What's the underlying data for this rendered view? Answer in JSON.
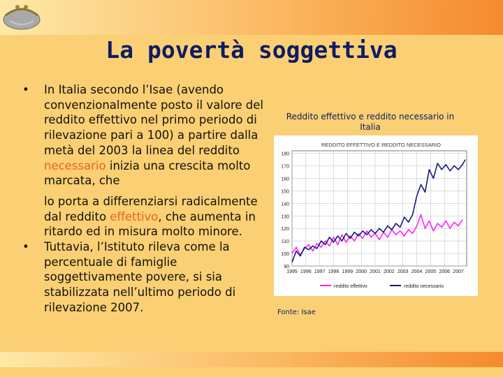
{
  "slide": {
    "title": "La povertà soggettiva",
    "bullet_1": {
      "p1_a": "In Italia secondo l’Isae (avendo convenzionalmente posto il valore del reddito effettivo nel primo periodo di rilevazione pari a 100) a partire dalla metà del 2003 la linea del reddito ",
      "p1_hl": "necessario",
      "p1_b": " inizia una crescita molto marcata, che",
      "p2_a": "lo porta a differenziarsi radicalmente dal reddito ",
      "p2_hl": "effettivo",
      "p2_b": ", che aumenta in ritardo ed in misura molto minore."
    },
    "bullet_2": "Tuttavia, l’Istituto rileva come la percentuale di famiglie soggettivamente povere, si sia stabilizzata nell’ultimo periodo di rilevazione 2007.",
    "bullet_symbol": "•",
    "chart_caption": "Reddito effettivo e reddito necessario in Italia",
    "source": "Fonte: Isae",
    "colors": {
      "title": "#0e1c63",
      "highlight": "#e7651b",
      "background": "#fbcf73"
    }
  },
  "chart_data": {
    "type": "line",
    "title": "REDDITO EFFETTIVO E REDDITO NECESSARIO",
    "x_ticks": [
      "1995",
      "1996",
      "1997",
      "1998",
      "1999",
      "2000",
      "2001",
      "2002",
      "2003",
      "2004",
      "2005",
      "2006",
      "2007"
    ],
    "y_ticks": [
      "90",
      "100",
      "110",
      "120",
      "130",
      "140",
      "150",
      "160",
      "170",
      "180"
    ],
    "xlim": [
      1995,
      2007.6
    ],
    "ylim": [
      90,
      182
    ],
    "grid": true,
    "legend_position": "bottom",
    "series": [
      {
        "name": "reddito effettivo",
        "color": "#ff22ff",
        "x": [
          1995,
          1995.3,
          1995.6,
          1995.9,
          1996.2,
          1996.5,
          1996.8,
          1997.1,
          1997.4,
          1997.7,
          1998,
          1998.3,
          1998.6,
          1998.9,
          1999.2,
          1999.5,
          1999.8,
          2000.1,
          2000.4,
          2000.7,
          2001,
          2001.3,
          2001.6,
          2001.9,
          2002.2,
          2002.5,
          2002.8,
          2003.1,
          2003.4,
          2003.7,
          2004,
          2004.3,
          2004.6,
          2004.9,
          2005.2,
          2005.5,
          2005.8,
          2006.1,
          2006.4,
          2006.7,
          2007,
          2007.3
        ],
        "values": [
          100,
          105,
          99,
          104,
          107,
          102,
          108,
          105,
          110,
          106,
          113,
          107,
          115,
          109,
          114,
          110,
          116,
          112,
          118,
          113,
          116,
          111,
          117,
          113,
          119,
          115,
          118,
          114,
          119,
          116,
          122,
          131,
          120,
          126,
          118,
          124,
          121,
          126,
          120,
          125,
          122,
          127
        ]
      },
      {
        "name": "reddito necessario",
        "color": "#1a1a7a",
        "x": [
          1995,
          1995.3,
          1995.6,
          1995.9,
          1996.2,
          1996.5,
          1996.8,
          1997.1,
          1997.4,
          1997.7,
          1998,
          1998.3,
          1998.6,
          1998.9,
          1999.2,
          1999.5,
          1999.8,
          2000.1,
          2000.4,
          2000.7,
          2001,
          2001.3,
          2001.6,
          2001.9,
          2002.2,
          2002.5,
          2002.8,
          2003.1,
          2003.4,
          2003.7,
          2004,
          2004.3,
          2004.6,
          2004.9,
          2005.2,
          2005.5,
          2005.8,
          2006.1,
          2006.4,
          2006.7,
          2007,
          2007.3,
          2007.5
        ],
        "values": [
          93,
          102,
          98,
          105,
          103,
          106,
          104,
          110,
          107,
          113,
          109,
          114,
          110,
          116,
          112,
          117,
          114,
          118,
          115,
          119,
          116,
          120,
          117,
          122,
          119,
          124,
          121,
          129,
          125,
          131,
          146,
          155,
          149,
          167,
          160,
          172,
          167,
          171,
          166,
          170,
          167,
          171,
          175
        ]
      }
    ]
  }
}
